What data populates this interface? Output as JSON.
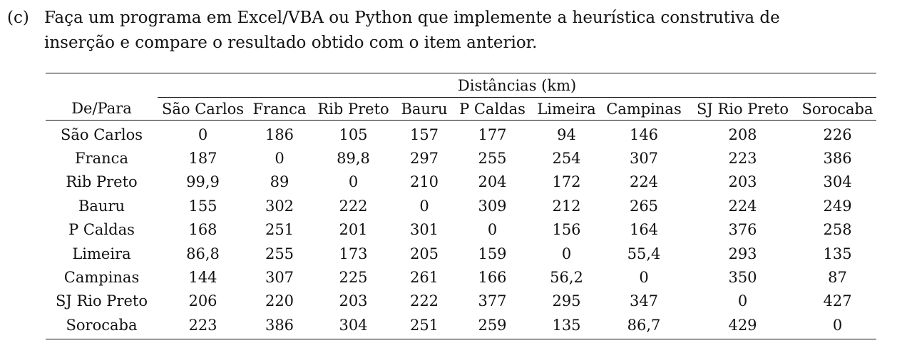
{
  "question": {
    "label": "(c)",
    "line1": "Faça um programa em Excel/VBA ou Python que implemente a heurística construtiva de",
    "line2": "inserção e compare o resultado obtido com o item anterior."
  },
  "table": {
    "group_header": "Distâncias (km)",
    "corner_header": "De/Para",
    "columns": [
      "São Carlos",
      "Franca",
      "Rib Preto",
      "Bauru",
      "P Caldas",
      "Limeira",
      "Campinas",
      "SJ Rio Preto",
      "Sorocaba"
    ],
    "rows": [
      {
        "label": "São Carlos",
        "values": [
          "0",
          "186",
          "105",
          "157",
          "177",
          "94",
          "146",
          "208",
          "226"
        ]
      },
      {
        "label": "Franca",
        "values": [
          "187",
          "0",
          "89,8",
          "297",
          "255",
          "254",
          "307",
          "223",
          "386"
        ]
      },
      {
        "label": "Rib Preto",
        "values": [
          "99,9",
          "89",
          "0",
          "210",
          "204",
          "172",
          "224",
          "203",
          "304"
        ]
      },
      {
        "label": "Bauru",
        "values": [
          "155",
          "302",
          "222",
          "0",
          "309",
          "212",
          "265",
          "224",
          "249"
        ]
      },
      {
        "label": "P Caldas",
        "values": [
          "168",
          "251",
          "201",
          "301",
          "0",
          "156",
          "164",
          "376",
          "258"
        ]
      },
      {
        "label": "Limeira",
        "values": [
          "86,8",
          "255",
          "173",
          "205",
          "159",
          "0",
          "55,4",
          "293",
          "135"
        ]
      },
      {
        "label": "Campinas",
        "values": [
          "144",
          "307",
          "225",
          "261",
          "166",
          "56,2",
          "0",
          "350",
          "87"
        ]
      },
      {
        "label": "SJ Rio Preto",
        "values": [
          "206",
          "220",
          "203",
          "222",
          "377",
          "295",
          "347",
          "0",
          "427"
        ]
      },
      {
        "label": "Sorocaba",
        "values": [
          "223",
          "386",
          "304",
          "251",
          "259",
          "135",
          "86,7",
          "429",
          "0"
        ]
      }
    ]
  }
}
